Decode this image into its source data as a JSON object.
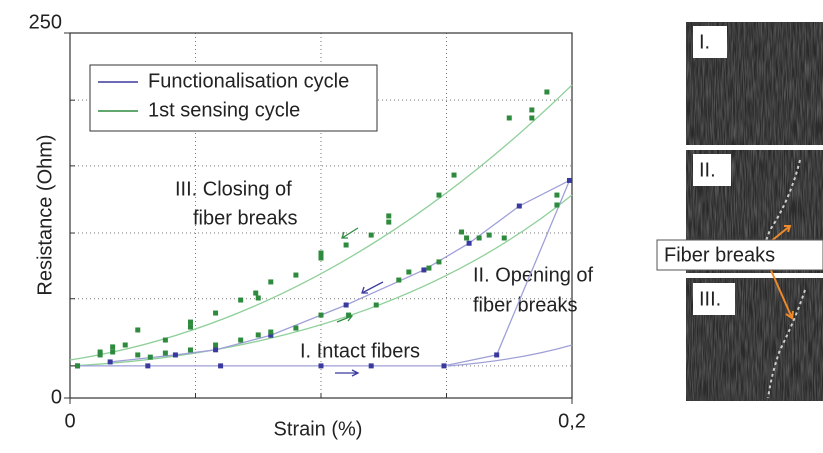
{
  "chart_data": {
    "type": "scatter",
    "xlabel": "Strain (%)",
    "ylabel": "Resistance (Ohm)",
    "xlim": [
      0,
      0.2
    ],
    "ylim": [
      0,
      250
    ],
    "xticks": [
      0,
      {
        "value": 0.2,
        "label": "0,2"
      }
    ],
    "yticks": [
      0,
      250
    ],
    "minor_xticks": [
      0.05,
      0.1,
      0.15
    ],
    "minor_yticks": [
      22,
      68,
      113,
      159,
      204
    ],
    "grid": true,
    "series": [
      {
        "name": "Functionalisation cycle",
        "color": "#3a3a9e",
        "line_color": "#9fa0d8",
        "x": [
          0.003,
          0.031,
          0.06,
          0.1,
          0.12,
          0.149,
          0.17,
          0.199,
          0.179,
          0.159,
          0.141,
          0.11,
          0.08,
          0.058,
          0.042,
          0.016
        ],
        "values": [
          22,
          22,
          22,
          22,
          22,
          22,
          29.5,
          149,
          131.5,
          106,
          87.7,
          63.7,
          43,
          33,
          29.5,
          24.7
        ]
      },
      {
        "name": "1st sensing cycle",
        "color": "#2e8b3e",
        "line_color": "#8fd09a",
        "x": [
          0.003,
          0.012,
          0.012,
          0.017,
          0.017,
          0.022,
          0.027,
          0.027,
          0.032,
          0.038,
          0.038,
          0.048,
          0.048,
          0.048,
          0.058,
          0.058,
          0.068,
          0.068,
          0.074,
          0.075,
          0.075,
          0.08,
          0.08,
          0.09,
          0.09,
          0.1,
          0.1,
          0.1,
          0.11,
          0.111,
          0.12,
          0.122,
          0.127,
          0.127,
          0.131,
          0.135,
          0.143,
          0.147,
          0.147,
          0.153,
          0.156,
          0.158,
          0.163,
          0.167,
          0.173,
          0.175,
          0.184,
          0.184,
          0.19,
          0.194,
          0.194
        ],
        "values": [
          22,
          31.5,
          29.5,
          35,
          31.5,
          36.3,
          46.6,
          29.5,
          28,
          39.7,
          30.8,
          52,
          48.6,
          32.9,
          58.2,
          36.3,
          67.1,
          39.7,
          71.9,
          68.5,
          43.2,
          79.5,
          45.2,
          84.2,
          47.9,
          99.3,
          95.9,
          56.8,
          104.8,
          56.8,
          111.6,
          63.7,
          124.7,
          120.5,
          80.8,
          86.3,
          89,
          139,
          93.2,
          152.7,
          113.7,
          109.6,
          109.6,
          111.6,
          109.6,
          191.8,
          197.3,
          191.8,
          209.6,
          139,
          132.2
        ]
      }
    ],
    "annotations": [
      "III. Closing of",
      "fiber breaks",
      "II. Opening of",
      "fiber breaks",
      "I. Intact fibers"
    ]
  },
  "images": {
    "panels": [
      "I.",
      "II.",
      "III."
    ],
    "callout": "Fiber breaks"
  }
}
